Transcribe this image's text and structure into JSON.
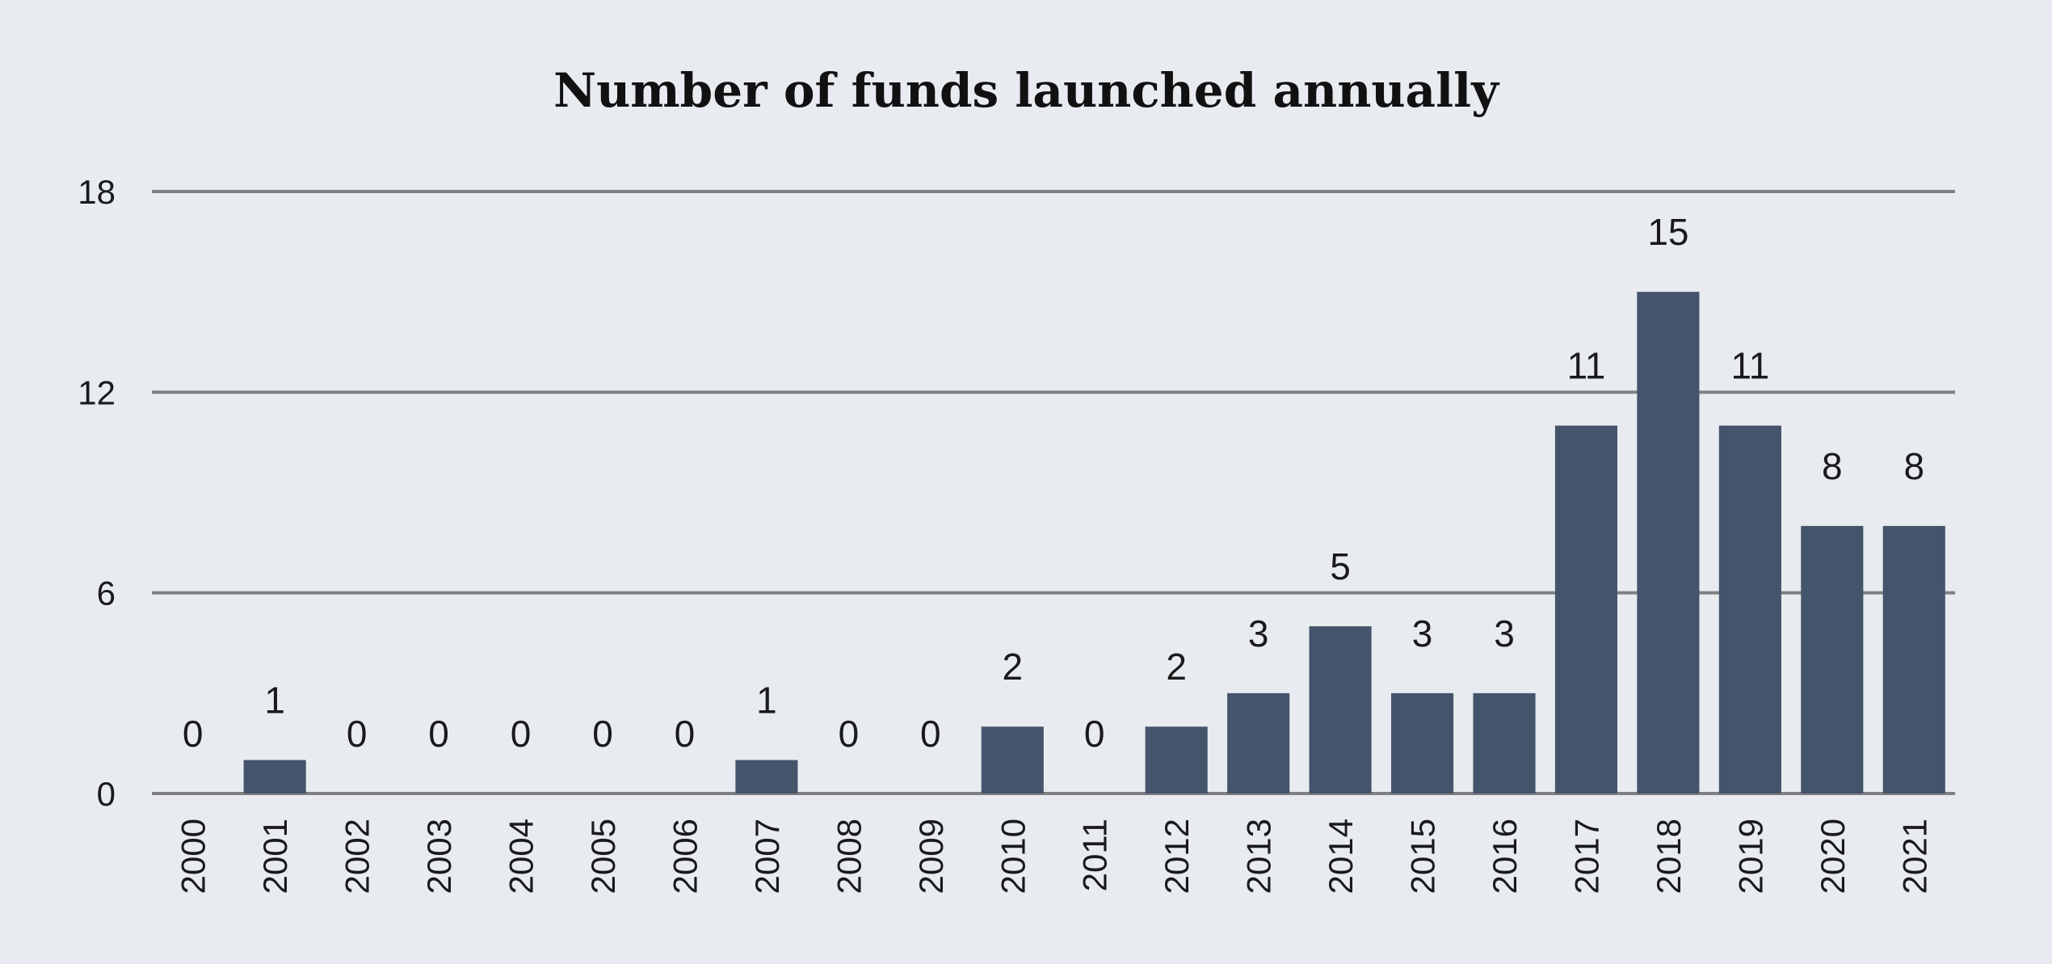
{
  "chart_data": {
    "type": "bar",
    "title": "Number of funds launched annually",
    "xlabel": "",
    "ylabel": "",
    "categories": [
      "2000",
      "2001",
      "2002",
      "2003",
      "2004",
      "2005",
      "2006",
      "2007",
      "2008",
      "2009",
      "2010",
      "2011",
      "2012",
      "2013",
      "2014",
      "2015",
      "2016",
      "2017",
      "2018",
      "2019",
      "2020",
      "2021"
    ],
    "values": [
      0,
      1,
      0,
      0,
      0,
      0,
      0,
      1,
      0,
      0,
      2,
      0,
      2,
      3,
      5,
      3,
      3,
      11,
      15,
      11,
      8,
      8
    ],
    "ylim": [
      0,
      18
    ],
    "yticks": [
      "0",
      "6",
      "12",
      "18"
    ],
    "grid": true,
    "data_labels": true,
    "legend": "none",
    "colors": {
      "bar": "#44546a",
      "background": "#e8ebf0",
      "grid": "#808080"
    }
  }
}
